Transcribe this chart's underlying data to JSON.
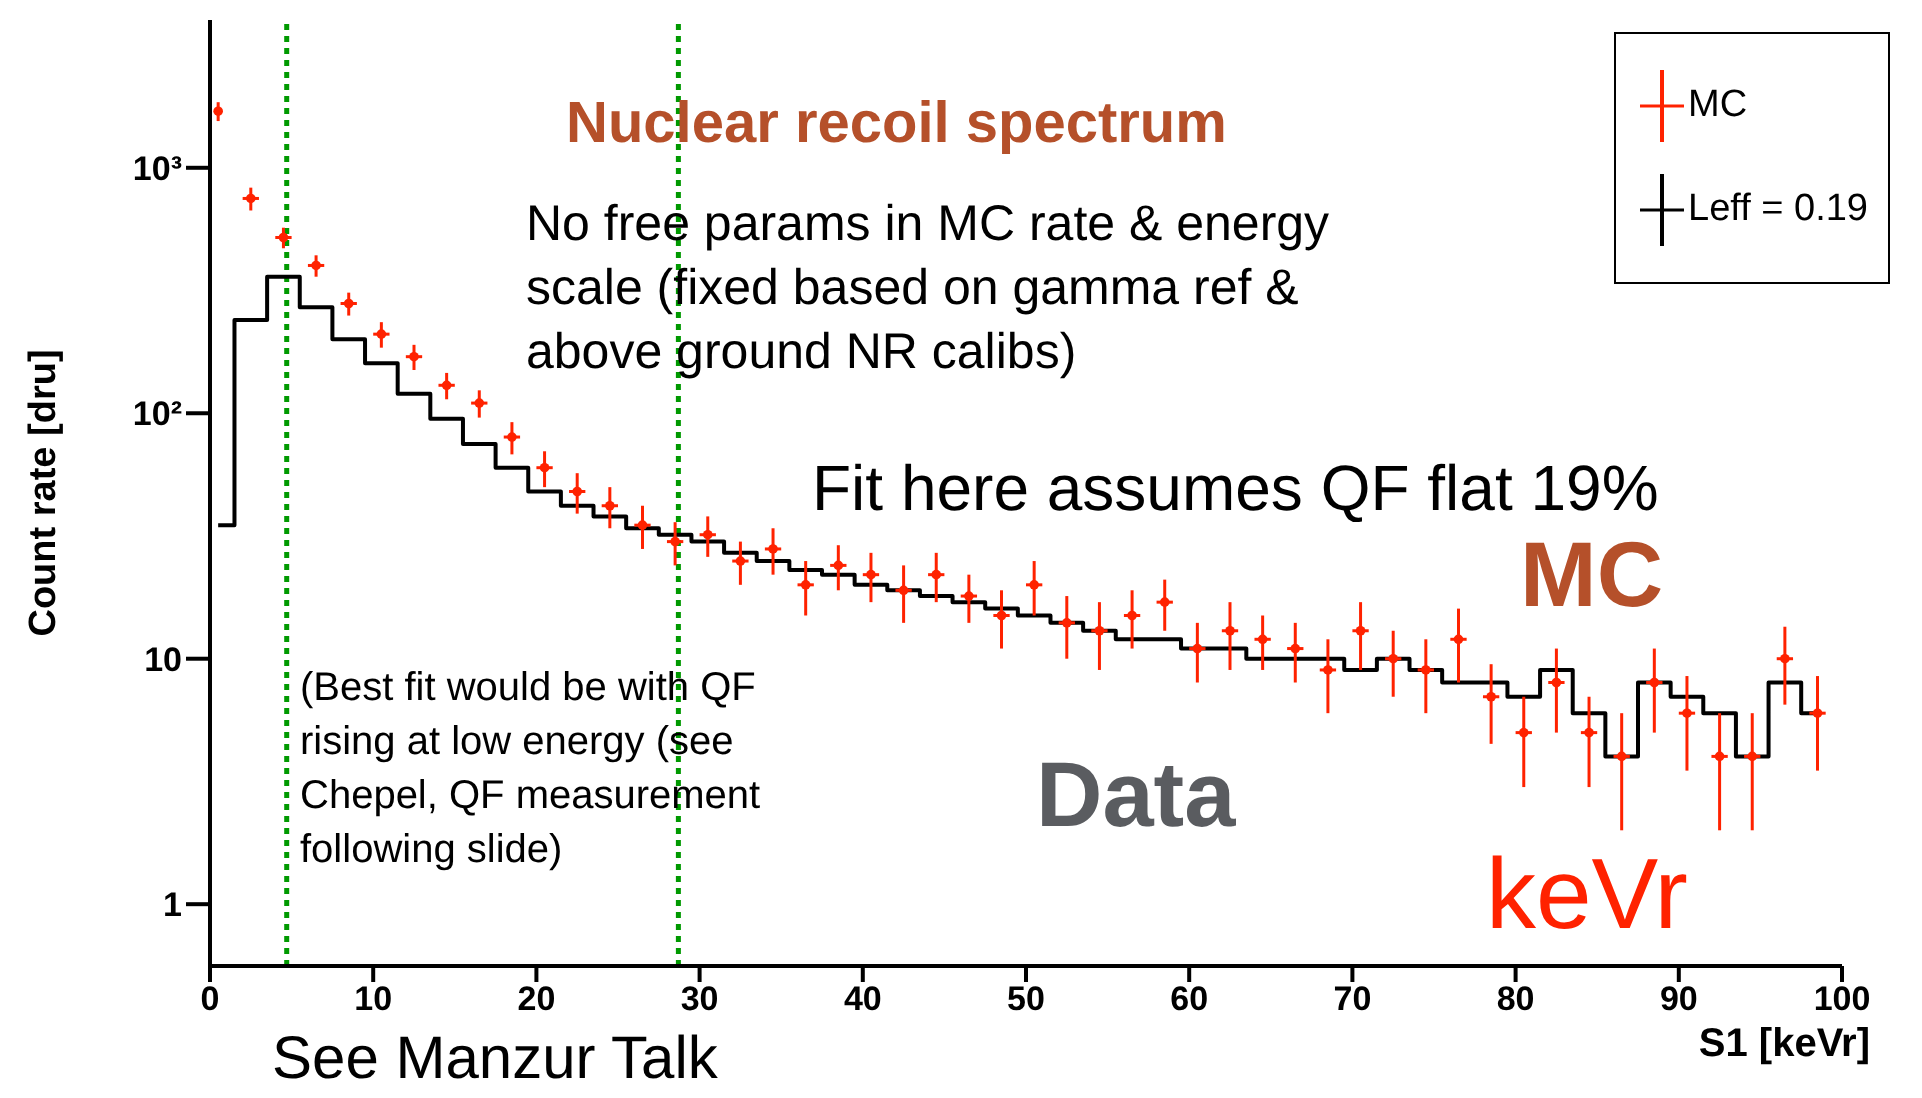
{
  "chart_data": {
    "type": "scatter",
    "title": "Nuclear recoil spectrum",
    "xlabel": "S1 [keVr]",
    "ylabel": "Count rate [dru]",
    "x": [
      0.5,
      2.5,
      4.5,
      6.5,
      8.5,
      10.5,
      12.5,
      14.5,
      16.5,
      18.5,
      20.5,
      22.5,
      24.5,
      26.5,
      28.5,
      30.5,
      32.5,
      34.5,
      36.5,
      38.5,
      40.5,
      42.5,
      44.5,
      46.5,
      48.5,
      50.5,
      52.5,
      54.5,
      56.5,
      58.5,
      60.5,
      62.5,
      64.5,
      66.5,
      68.5,
      70.5,
      72.5,
      74.5,
      76.5,
      78.5,
      80.5,
      82.5,
      84.5,
      86.5,
      88.5,
      90.5,
      92.5,
      94.5,
      96.5,
      98.5
    ],
    "series": [
      {
        "name": "MC",
        "color": "#ff2200",
        "values": [
          1700,
          750,
          520,
          400,
          280,
          210,
          170,
          130,
          110,
          80,
          60,
          48,
          42,
          35,
          30,
          32,
          25,
          28,
          20,
          24,
          22,
          19,
          22,
          18,
          15,
          20,
          14,
          13,
          15,
          17,
          11,
          13,
          12,
          11,
          9,
          13,
          10,
          9,
          12,
          7,
          5,
          8,
          5,
          4,
          8,
          6,
          4,
          4,
          10,
          6
        ],
        "errors": [
          150,
          80,
          50,
          40,
          30,
          25,
          20,
          16,
          14,
          12,
          10,
          9,
          8,
          7,
          6,
          6,
          5,
          6,
          5,
          5,
          5,
          5,
          5,
          4,
          4,
          5,
          4,
          4,
          4,
          4,
          3,
          4,
          3,
          3,
          3,
          4,
          3,
          3,
          4,
          2.5,
          2,
          3,
          2,
          2,
          3,
          2.5,
          2,
          2,
          3.5,
          2.5
        ],
        "xerrors": [
          null,
          0.5,
          0.5,
          0.5,
          0.5,
          0.5,
          0.5,
          0.5,
          0.5,
          0.5,
          0.5,
          0.5,
          0.5,
          0.5,
          0.5,
          0.5,
          0.5,
          0.5,
          0.5,
          0.5,
          0.5,
          0.5,
          0.5,
          0.5,
          0.5,
          0.5,
          0.5,
          0.5,
          0.5,
          0.5,
          0.5,
          0.5,
          0.5,
          0.5,
          0.5,
          0.5,
          0.5,
          0.5,
          0.5,
          0.5,
          0.5,
          0.5,
          0.5,
          0.5,
          0.5,
          0.5,
          0.5,
          0.5,
          0.5,
          0.5
        ]
      },
      {
        "name": "Leff = 0.19",
        "type": "step",
        "color": "#000000",
        "values": [
          35,
          240,
          360,
          270,
          200,
          160,
          120,
          95,
          75,
          60,
          48,
          42,
          38,
          34,
          32,
          30,
          27,
          25,
          23,
          22,
          20,
          19,
          18,
          17,
          16,
          15,
          14,
          13,
          12,
          12,
          11,
          11,
          10,
          10,
          10,
          9,
          10,
          9,
          8,
          8,
          7,
          9,
          6,
          4,
          8,
          7,
          6,
          4,
          8,
          6
        ]
      }
    ],
    "xlim": [
      0,
      100
    ],
    "xticks": [
      0,
      10,
      20,
      30,
      40,
      50,
      60,
      70,
      80,
      90,
      100
    ],
    "ylim": [
      0.56,
      4000
    ],
    "yticks": [
      1,
      10,
      {
        "value": 100,
        "label": "10²"
      },
      {
        "value": 1000,
        "label": "10³"
      }
    ],
    "log": "y",
    "grid": false,
    "legend": "top right",
    "ref_lines": [
      {
        "axis": "x",
        "value": 4.7,
        "color": "#009900",
        "line_style": "dotted"
      },
      {
        "axis": "x",
        "value": 28.7,
        "color": "#009900",
        "line_style": "dotted"
      }
    ],
    "annotations": [
      "No free params in MC rate & energy\nscale (fixed based on gamma ref &\nabove ground NR calibs)",
      "Fit here assumes QF flat 19%",
      "MC",
      "Data",
      "keVr",
      "(Best fit would be with QF\nrising at low energy (see\nChepel, QF measurement\nfollowing slide)",
      "See Manzur Talk"
    ]
  }
}
